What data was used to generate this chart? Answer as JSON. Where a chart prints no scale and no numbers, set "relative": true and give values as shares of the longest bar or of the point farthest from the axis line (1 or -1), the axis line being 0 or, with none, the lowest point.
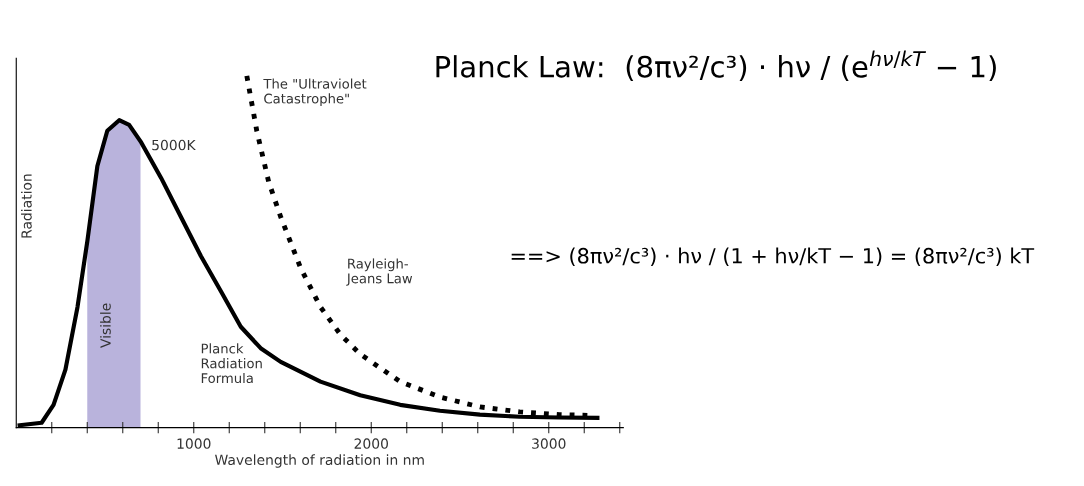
{
  "chart_data": {
    "type": "line",
    "relative": true,
    "xlabel": "Wavelength of radiation in nm",
    "ylabel": "Radiation",
    "xlim": [
      0,
      3420
    ],
    "xticks": [
      {
        "value": 200,
        "label": null
      },
      {
        "value": 400,
        "label": null
      },
      {
        "value": 600,
        "label": null
      },
      {
        "value": 800,
        "label": null
      },
      1000,
      {
        "value": 1200,
        "label": null
      },
      {
        "value": 1400,
        "label": null
      },
      {
        "value": 1600,
        "label": null
      },
      {
        "value": 1800,
        "label": null
      },
      2000,
      {
        "value": 2200,
        "label": null
      },
      {
        "value": 2400,
        "label": null
      },
      {
        "value": 2600,
        "label": null
      },
      {
        "value": 2800,
        "label": null
      },
      3000,
      {
        "value": 3200,
        "label": null
      },
      {
        "value": 3400,
        "label": null
      }
    ],
    "tick_labels": "x",
    "grid": false,
    "legend": false,
    "series": [
      {
        "color": "#000000",
        "line_style": "solid",
        "x": [
          19,
          143,
          210,
          277,
          345,
          401,
          457,
          513,
          580,
          636,
          704,
          816,
          928,
          1040,
          1153,
          1265,
          1377,
          1490,
          1714,
          1938,
          2163,
          2387,
          2612,
          2836,
          3060,
          3274
        ],
        "values": [
          0.007,
          0.014,
          0.065,
          0.165,
          0.343,
          0.532,
          0.744,
          0.844,
          0.874,
          0.861,
          0.811,
          0.71,
          0.599,
          0.488,
          0.388,
          0.287,
          0.226,
          0.187,
          0.131,
          0.092,
          0.065,
          0.048,
          0.037,
          0.031,
          0.029,
          0.028
        ]
      },
      {
        "color": "#000000",
        "line_style": "dotted",
        "x": [
          1299,
          1355,
          1422,
          1490,
          1602,
          1714,
          1826,
          1938,
          2163,
          2387,
          2612,
          2836,
          3060,
          3218
        ],
        "values": [
          1.0,
          0.844,
          0.699,
          0.599,
          0.454,
          0.343,
          0.265,
          0.209,
          0.131,
          0.087,
          0.059,
          0.045,
          0.037,
          0.035
        ]
      }
    ],
    "bands": [
      {
        "axis": "x",
        "from": 400,
        "to": 700,
        "label": "Visible",
        "color": "#b9b3dc"
      }
    ],
    "annotations": [
      "The \"Ultraviolet\nCatastrophe\"",
      {
        "text": "5000K",
        "x": 760,
        "y": 0.8
      },
      "Rayleigh-\nJeans Law",
      "Planck\nRadiation\nFormula",
      "Planck Law:  (8πν²/c³) · hν / (e$^{hν/kT}$ − 1)",
      "==> (8πν²/c³) · hν / (1 + hν/kT − 1) = (8πν²/c³) kT"
    ]
  }
}
